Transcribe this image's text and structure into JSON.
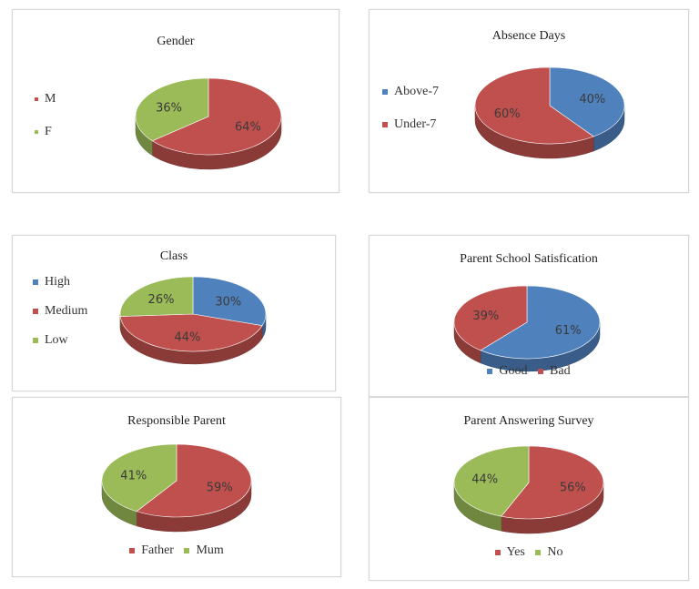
{
  "colors": {
    "red": "#c0504d",
    "green": "#9bbb59",
    "blue": "#4f81bd"
  },
  "chart_data": [
    {
      "type": "pie",
      "title": "Gender",
      "slices": [
        {
          "label": "M",
          "value": 64,
          "display": "64%",
          "color": "#c0504d"
        },
        {
          "label": "F",
          "value": 36,
          "display": "36%",
          "color": "#9bbb59"
        }
      ],
      "legend_position": "left"
    },
    {
      "type": "pie",
      "title": "Absence Days",
      "slices": [
        {
          "label": "Above-7",
          "value": 40,
          "display": "40%",
          "color": "#4f81bd"
        },
        {
          "label": "Under-7",
          "value": 60,
          "display": "60%",
          "color": "#c0504d"
        }
      ],
      "legend_position": "left"
    },
    {
      "type": "pie",
      "title": "Class",
      "slices": [
        {
          "label": "High",
          "value": 30,
          "display": "30%",
          "color": "#4f81bd"
        },
        {
          "label": "Medium",
          "value": 44,
          "display": "44%",
          "color": "#c0504d"
        },
        {
          "label": "Low",
          "value": 26,
          "display": "26%",
          "color": "#9bbb59"
        }
      ],
      "legend_position": "left"
    },
    {
      "type": "pie",
      "title": "Parent School Satisfication",
      "slices": [
        {
          "label": "Good",
          "value": 61,
          "display": "61%",
          "color": "#4f81bd"
        },
        {
          "label": "Bad",
          "value": 39,
          "display": "39%",
          "color": "#c0504d"
        }
      ],
      "legend_position": "bottom"
    },
    {
      "type": "pie",
      "title": "Responsible Parent",
      "slices": [
        {
          "label": "Father",
          "value": 59,
          "display": "59%",
          "color": "#c0504d"
        },
        {
          "label": "Mum",
          "value": 41,
          "display": "41%",
          "color": "#9bbb59"
        }
      ],
      "legend_position": "bottom"
    },
    {
      "type": "pie",
      "title": "Parent Answering Survey",
      "slices": [
        {
          "label": "Yes",
          "value": 56,
          "display": "56%",
          "color": "#c0504d"
        },
        {
          "label": "No",
          "value": 44,
          "display": "44%",
          "color": "#9bbb59"
        }
      ],
      "legend_position": "bottom"
    }
  ]
}
